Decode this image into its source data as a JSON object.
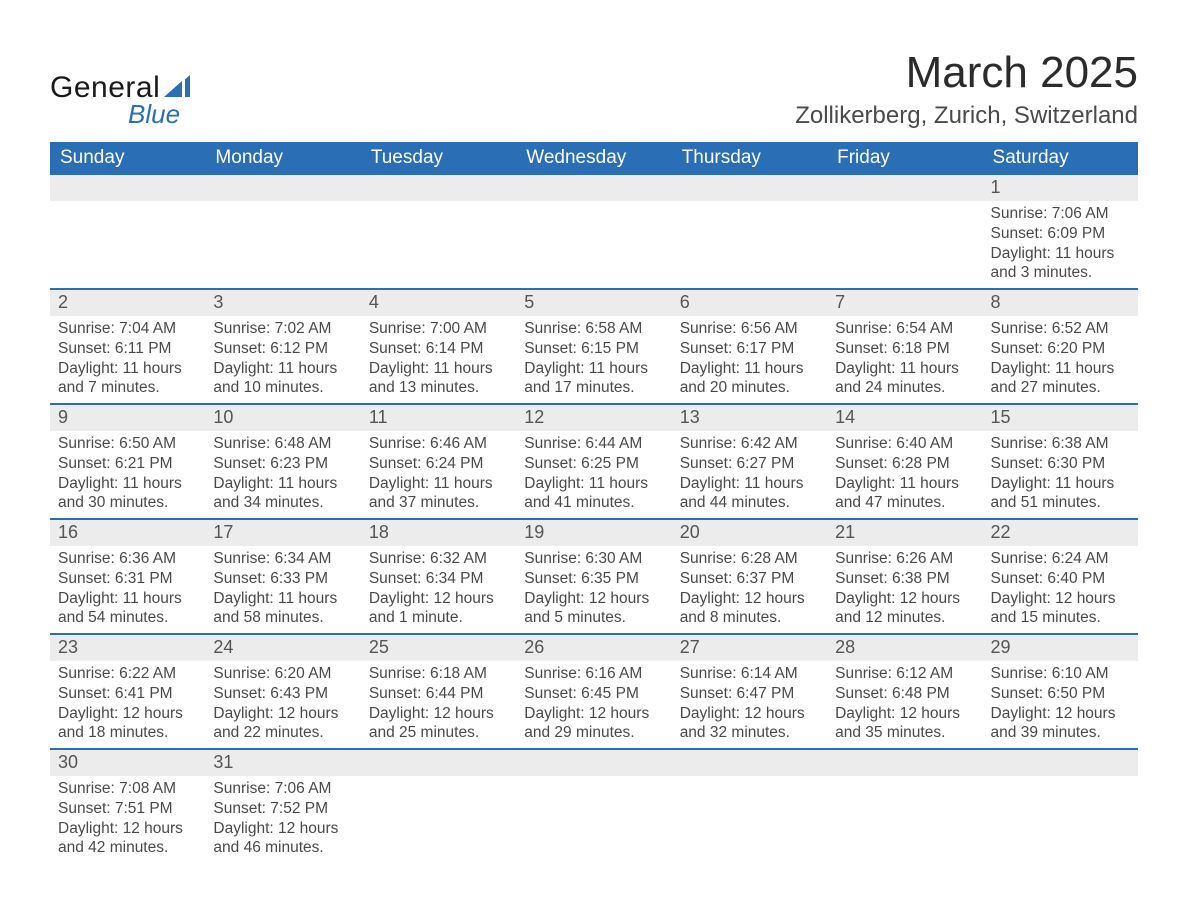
{
  "brand": {
    "general": "General",
    "blue": "Blue",
    "sail_color": "#2a6fb5"
  },
  "title": "March 2025",
  "location": "Zollikerberg, Zurich, Switzerland",
  "colors": {
    "header_bg": "#2a6fb5",
    "header_text": "#ffffff",
    "row_stripe": "#ececec",
    "border": "#2a6fb5",
    "text": "#4a4a4a"
  },
  "typography": {
    "title_fontsize_pt": 33,
    "location_fontsize_pt": 18,
    "header_fontsize_pt": 14,
    "body_fontsize_pt": 12
  },
  "day_headers": [
    "Sunday",
    "Monday",
    "Tuesday",
    "Wednesday",
    "Thursday",
    "Friday",
    "Saturday"
  ],
  "layout_type": "calendar-table",
  "weeks": [
    [
      null,
      null,
      null,
      null,
      null,
      null,
      {
        "n": "1",
        "sunrise": "7:06 AM",
        "sunset": "6:09 PM",
        "daylight": "11 hours and 3 minutes."
      }
    ],
    [
      {
        "n": "2",
        "sunrise": "7:04 AM",
        "sunset": "6:11 PM",
        "daylight": "11 hours and 7 minutes."
      },
      {
        "n": "3",
        "sunrise": "7:02 AM",
        "sunset": "6:12 PM",
        "daylight": "11 hours and 10 minutes."
      },
      {
        "n": "4",
        "sunrise": "7:00 AM",
        "sunset": "6:14 PM",
        "daylight": "11 hours and 13 minutes."
      },
      {
        "n": "5",
        "sunrise": "6:58 AM",
        "sunset": "6:15 PM",
        "daylight": "11 hours and 17 minutes."
      },
      {
        "n": "6",
        "sunrise": "6:56 AM",
        "sunset": "6:17 PM",
        "daylight": "11 hours and 20 minutes."
      },
      {
        "n": "7",
        "sunrise": "6:54 AM",
        "sunset": "6:18 PM",
        "daylight": "11 hours and 24 minutes."
      },
      {
        "n": "8",
        "sunrise": "6:52 AM",
        "sunset": "6:20 PM",
        "daylight": "11 hours and 27 minutes."
      }
    ],
    [
      {
        "n": "9",
        "sunrise": "6:50 AM",
        "sunset": "6:21 PM",
        "daylight": "11 hours and 30 minutes."
      },
      {
        "n": "10",
        "sunrise": "6:48 AM",
        "sunset": "6:23 PM",
        "daylight": "11 hours and 34 minutes."
      },
      {
        "n": "11",
        "sunrise": "6:46 AM",
        "sunset": "6:24 PM",
        "daylight": "11 hours and 37 minutes."
      },
      {
        "n": "12",
        "sunrise": "6:44 AM",
        "sunset": "6:25 PM",
        "daylight": "11 hours and 41 minutes."
      },
      {
        "n": "13",
        "sunrise": "6:42 AM",
        "sunset": "6:27 PM",
        "daylight": "11 hours and 44 minutes."
      },
      {
        "n": "14",
        "sunrise": "6:40 AM",
        "sunset": "6:28 PM",
        "daylight": "11 hours and 47 minutes."
      },
      {
        "n": "15",
        "sunrise": "6:38 AM",
        "sunset": "6:30 PM",
        "daylight": "11 hours and 51 minutes."
      }
    ],
    [
      {
        "n": "16",
        "sunrise": "6:36 AM",
        "sunset": "6:31 PM",
        "daylight": "11 hours and 54 minutes."
      },
      {
        "n": "17",
        "sunrise": "6:34 AM",
        "sunset": "6:33 PM",
        "daylight": "11 hours and 58 minutes."
      },
      {
        "n": "18",
        "sunrise": "6:32 AM",
        "sunset": "6:34 PM",
        "daylight": "12 hours and 1 minute."
      },
      {
        "n": "19",
        "sunrise": "6:30 AM",
        "sunset": "6:35 PM",
        "daylight": "12 hours and 5 minutes."
      },
      {
        "n": "20",
        "sunrise": "6:28 AM",
        "sunset": "6:37 PM",
        "daylight": "12 hours and 8 minutes."
      },
      {
        "n": "21",
        "sunrise": "6:26 AM",
        "sunset": "6:38 PM",
        "daylight": "12 hours and 12 minutes."
      },
      {
        "n": "22",
        "sunrise": "6:24 AM",
        "sunset": "6:40 PM",
        "daylight": "12 hours and 15 minutes."
      }
    ],
    [
      {
        "n": "23",
        "sunrise": "6:22 AM",
        "sunset": "6:41 PM",
        "daylight": "12 hours and 18 minutes."
      },
      {
        "n": "24",
        "sunrise": "6:20 AM",
        "sunset": "6:43 PM",
        "daylight": "12 hours and 22 minutes."
      },
      {
        "n": "25",
        "sunrise": "6:18 AM",
        "sunset": "6:44 PM",
        "daylight": "12 hours and 25 minutes."
      },
      {
        "n": "26",
        "sunrise": "6:16 AM",
        "sunset": "6:45 PM",
        "daylight": "12 hours and 29 minutes."
      },
      {
        "n": "27",
        "sunrise": "6:14 AM",
        "sunset": "6:47 PM",
        "daylight": "12 hours and 32 minutes."
      },
      {
        "n": "28",
        "sunrise": "6:12 AM",
        "sunset": "6:48 PM",
        "daylight": "12 hours and 35 minutes."
      },
      {
        "n": "29",
        "sunrise": "6:10 AM",
        "sunset": "6:50 PM",
        "daylight": "12 hours and 39 minutes."
      }
    ],
    [
      {
        "n": "30",
        "sunrise": "7:08 AM",
        "sunset": "7:51 PM",
        "daylight": "12 hours and 42 minutes."
      },
      {
        "n": "31",
        "sunrise": "7:06 AM",
        "sunset": "7:52 PM",
        "daylight": "12 hours and 46 minutes."
      },
      null,
      null,
      null,
      null,
      null
    ]
  ],
  "labels": {
    "sunrise": "Sunrise: ",
    "sunset": "Sunset: ",
    "daylight": "Daylight: "
  }
}
